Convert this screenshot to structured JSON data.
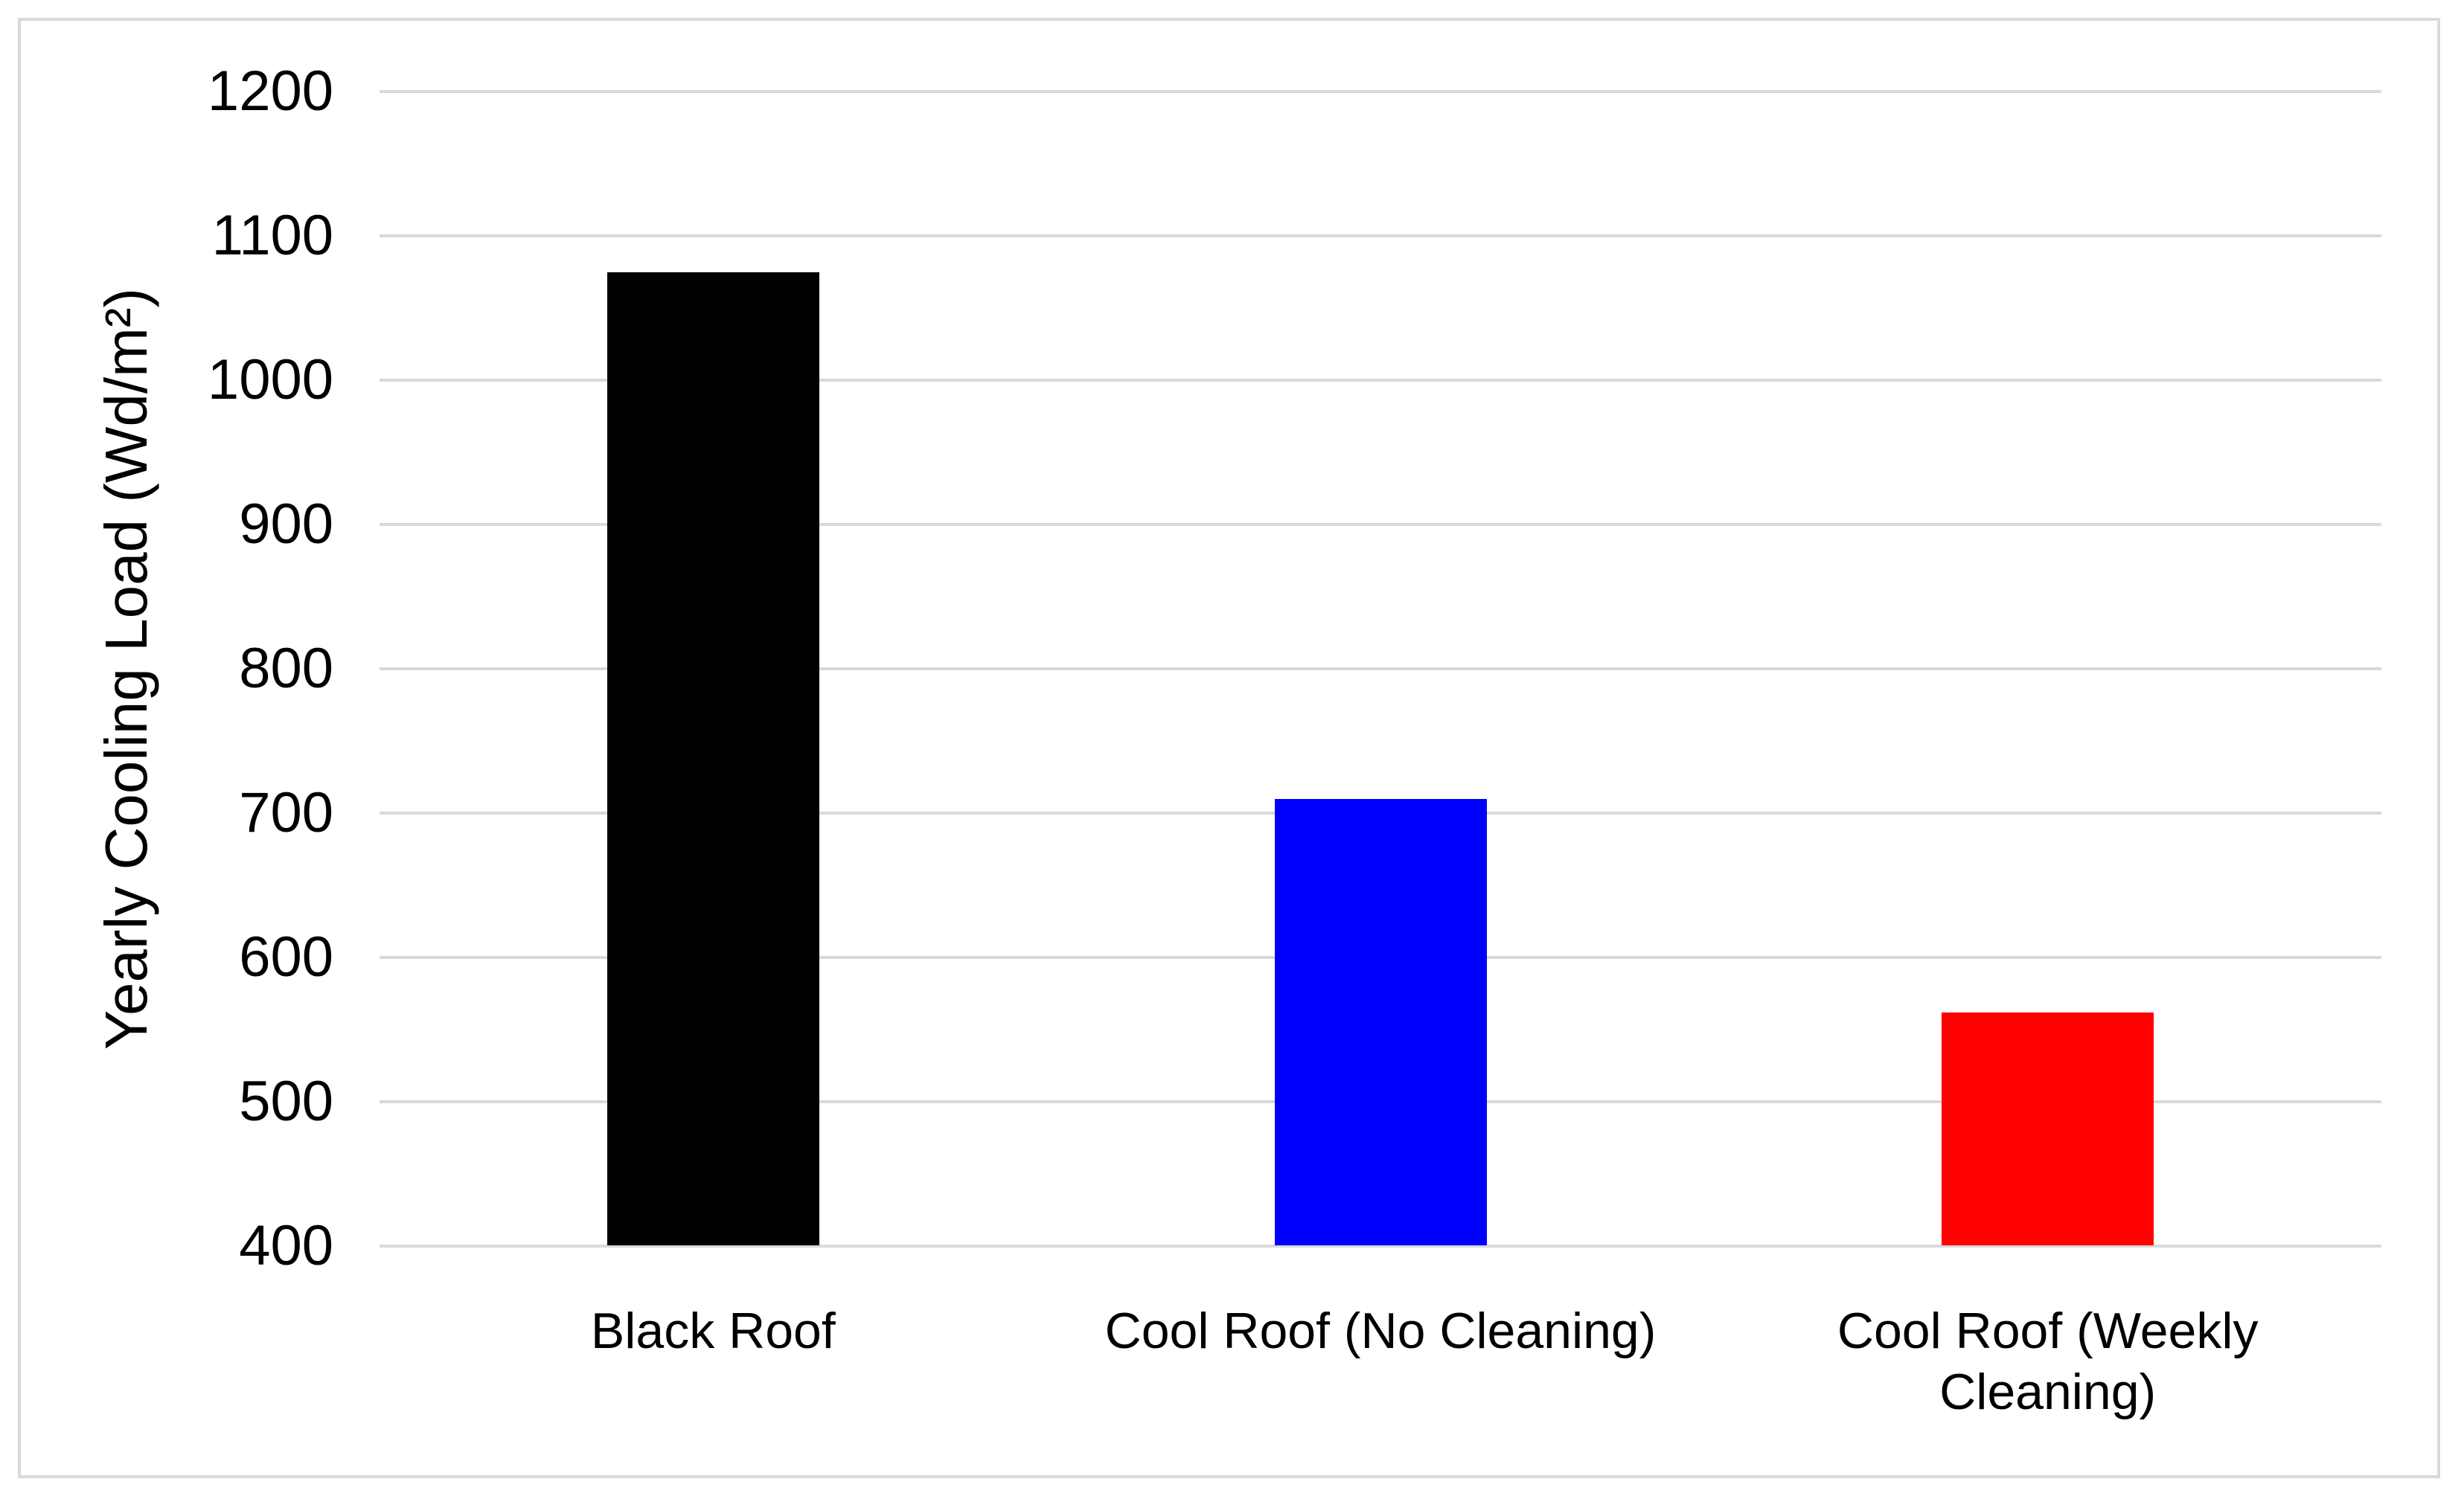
{
  "chart_data": {
    "type": "bar",
    "title": "",
    "categories": [
      "Black Roof",
      "Cool Roof (No Cleaning)",
      "Cool Roof (Weekly Cleaning)"
    ],
    "category_label_lines": [
      [
        "Black Roof"
      ],
      [
        "Cool Roof (No Cleaning)"
      ],
      [
        "Cool Roof (Weekly",
        "Cleaning)"
      ]
    ],
    "values": [
      1075,
      710,
      562
    ],
    "bar_colors": [
      "#000000",
      "#0000FF",
      "#FF0000"
    ],
    "xlabel": "",
    "ylabel": "Yearly Cooling Load (Wd/m²)",
    "ylim": [
      400,
      1200
    ],
    "yticks": [
      400,
      500,
      600,
      700,
      800,
      900,
      1000,
      1100,
      1200
    ],
    "grid": "horizontal",
    "legend": "none",
    "gridline_color": "#D9D9D9",
    "frame_border_color": "#D9D9D9",
    "text_color": "#000000",
    "background_color": "#FFFFFF"
  }
}
